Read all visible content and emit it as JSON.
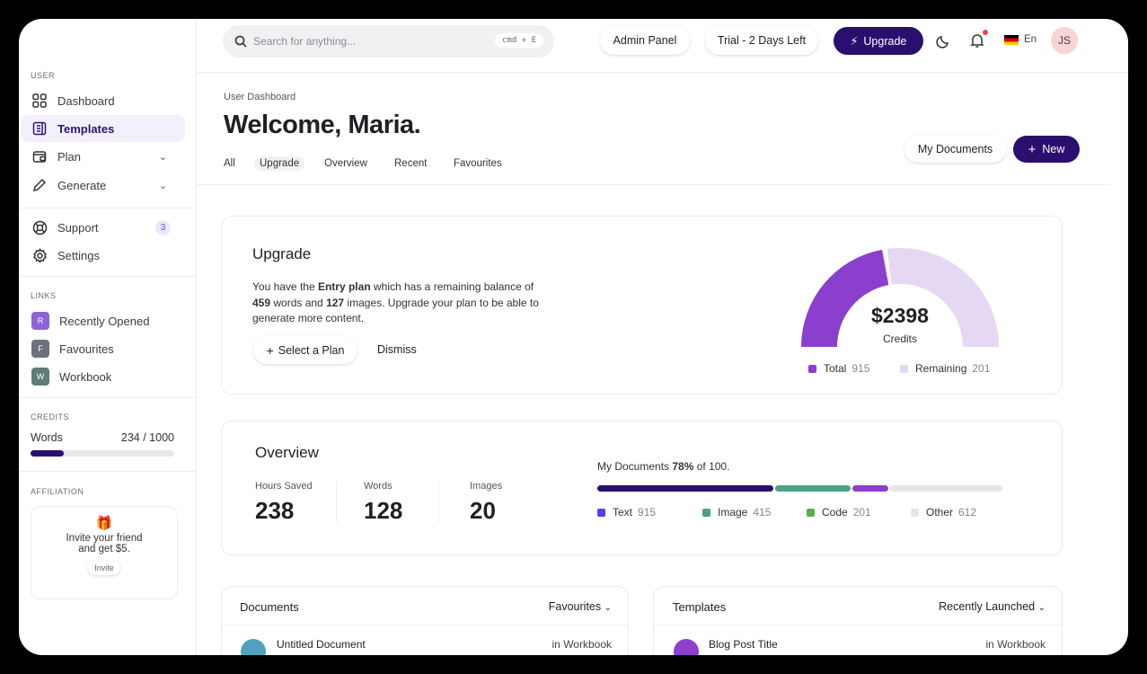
{
  "sidebar": {
    "user_section": "USER",
    "items": [
      {
        "label": "Dashboard",
        "icon": "grid-icon"
      },
      {
        "label": "Templates",
        "icon": "document-icon"
      },
      {
        "label": "Plan",
        "icon": "wallet-icon"
      },
      {
        "label": "Generate",
        "icon": "pencil-icon"
      },
      {
        "label": "Support",
        "icon": "lifebuoy-icon",
        "badge": "3"
      },
      {
        "label": "Settings",
        "icon": "gear-icon"
      }
    ],
    "links_section": "LINKS",
    "links": [
      {
        "initial": "R",
        "label": "Recently Opened",
        "color": "#8e63d6"
      },
      {
        "initial": "F",
        "label": "Favourites",
        "color": "#6e7080"
      },
      {
        "initial": "W",
        "label": "Workbook",
        "color": "#5f7d78"
      }
    ],
    "credits_section": "CREDITS",
    "credits": {
      "label": "Words",
      "value": "234 / 1000",
      "fraction": 0.234
    },
    "affiliation_section": "AFFILIATION",
    "affiliation": {
      "text1": "Invite your friend",
      "text2": "and get $5.",
      "button": "Invite"
    }
  },
  "topbar": {
    "search_placeholder": "Search for anything...",
    "shortcut": "cmd + E",
    "admin": "Admin Panel",
    "trial": "Trial - 2 Days Left",
    "upgrade": "Upgrade",
    "language": "En",
    "avatar": "JS"
  },
  "header": {
    "breadcrumb": "User Dashboard",
    "title": "Welcome, Maria.",
    "tabs": [
      "All",
      "Upgrade",
      "Overview",
      "Recent",
      "Favourites"
    ],
    "my_documents": "My Documents",
    "new": "New"
  },
  "upgrade": {
    "title": "Upgrade",
    "t1": "You have the ",
    "plan": "Entry plan",
    "t2": " which has a remaining balance of",
    "words": "459",
    "t3": " words and ",
    "images": "127",
    "t4": " images. Upgrade your plan to be able to",
    "t5": "generate more content.",
    "select": "Select a Plan",
    "dismiss": "Dismiss"
  },
  "gauge": {
    "amount": "$2398",
    "label": "Credits",
    "legend": [
      {
        "name": "Total",
        "value": 915,
        "color": "#8b3fcf"
      },
      {
        "name": "Remaining",
        "value": 201,
        "color": "#e6d8f3"
      }
    ],
    "filled_fraction": 0.45
  },
  "overview": {
    "title": "Overview",
    "stats": [
      {
        "label": "Hours Saved",
        "value": "238"
      },
      {
        "label": "Words",
        "value": "128"
      },
      {
        "label": "Images",
        "value": "20"
      }
    ],
    "docs_pre": "My Documents ",
    "docs_pct": "78%",
    "docs_post": " of 100.",
    "segments": [
      {
        "name": "Text",
        "value": 915,
        "color": "#2a0f6e",
        "legend_color": "#5b3fe0"
      },
      {
        "name": "Image",
        "value": 415,
        "color": "#4aa386"
      },
      {
        "name": "Code",
        "value": 201,
        "color": "#8f3ecf",
        "legend_color": "#57b04c"
      },
      {
        "name": "Other",
        "value": 612,
        "color": "#e6e6e8"
      }
    ]
  },
  "documents": {
    "title": "Documents",
    "filter": "Favourites",
    "row": {
      "name": "Untitled Document",
      "location": "in Workbook"
    }
  },
  "templates": {
    "title": "Templates",
    "filter": "Recently Launched",
    "row": {
      "name": "Blog Post Title",
      "location": "in Workbook"
    }
  }
}
